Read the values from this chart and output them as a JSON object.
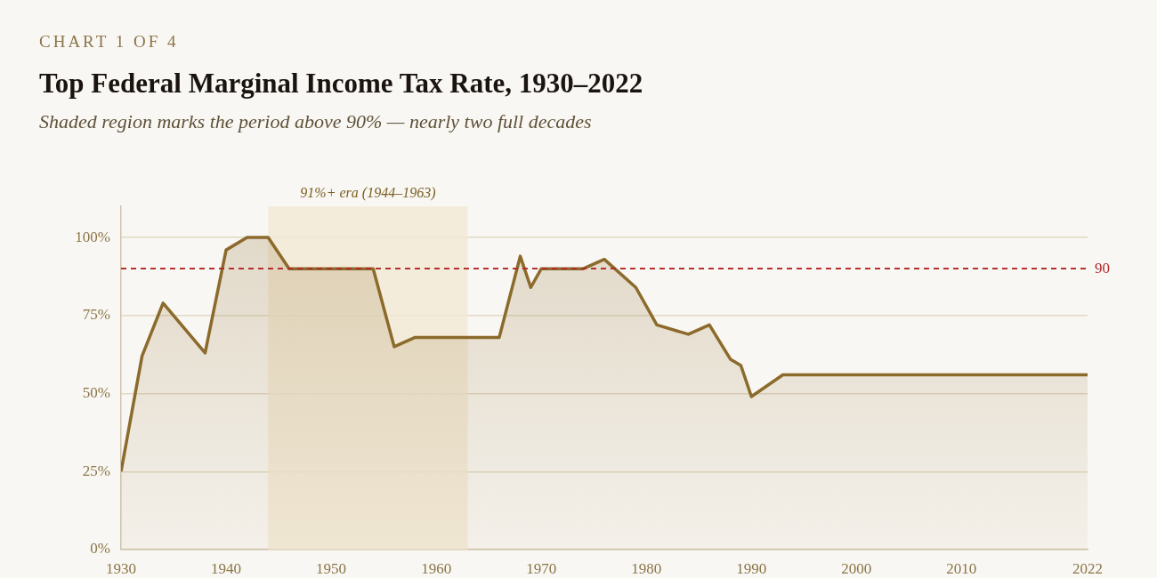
{
  "chart_data": {
    "type": "area",
    "title": "Top Federal Marginal Income Tax Rate, 1930–2022",
    "subtitle": "Shaded region marks the period above 90% — nearly two full decades",
    "annotations": [
      "CHART 1 OF 4"
    ],
    "x": [
      1930,
      1932,
      1934,
      1938,
      1940,
      1942,
      1944,
      1946,
      1954,
      1956,
      1958,
      1966,
      1968,
      1969,
      1970,
      1974,
      1976,
      1979,
      1981,
      1984,
      1986,
      1988,
      1989,
      1990,
      1993,
      2022
    ],
    "series": [
      {
        "color": "#8b6a2b",
        "values": [
          25,
          62,
          79,
          63,
          96,
          100,
          100,
          90,
          90,
          65,
          68,
          68,
          94,
          84,
          90,
          90,
          93,
          84,
          72,
          69,
          72,
          61,
          59,
          49,
          56,
          56
        ]
      }
    ],
    "xlim": [
      1930,
      2022
    ],
    "xticks": [
      1930,
      1940,
      1950,
      1960,
      1970,
      1980,
      1990,
      2000,
      2010,
      2022
    ],
    "ylim": [
      0,
      110
    ],
    "yticks": [
      {
        "value": 0,
        "label": "0%"
      },
      {
        "value": 25,
        "label": "25%"
      },
      {
        "value": 50,
        "label": "50%"
      },
      {
        "value": 75,
        "label": "75%"
      },
      {
        "value": 100,
        "label": "100%"
      }
    ],
    "grid": "y",
    "marker": "none",
    "ref_lines": [
      {
        "axis": "y",
        "value": 90,
        "label": "90",
        "color": "#b22a2a",
        "line_style": "dashed"
      }
    ],
    "bands": [
      {
        "axis": "x",
        "from": 1944,
        "to": 1963,
        "label": "91%+ era (1944–1963)",
        "color": "#f3e8d4"
      }
    ]
  }
}
